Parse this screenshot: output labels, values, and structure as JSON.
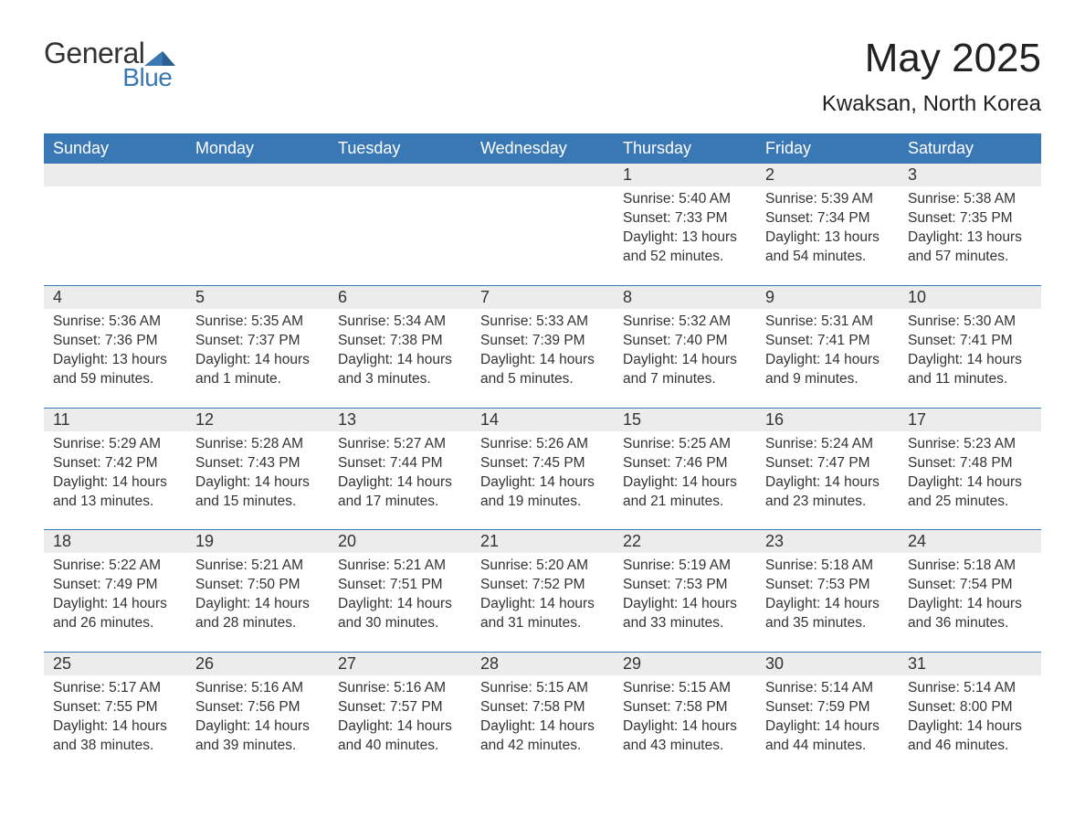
{
  "brand": {
    "name1": "General",
    "name2": "Blue",
    "accent": "#3a78b5"
  },
  "title": "May 2025",
  "location": "Kwaksan, North Korea",
  "colors": {
    "header_bg": "#3a78b5",
    "header_text": "#ffffff",
    "daynum_bg": "#ececec",
    "text": "#333333",
    "background": "#ffffff",
    "week_divider": "#3a78b5"
  },
  "weekdays": [
    "Sunday",
    "Monday",
    "Tuesday",
    "Wednesday",
    "Thursday",
    "Friday",
    "Saturday"
  ],
  "weeks": [
    [
      null,
      null,
      null,
      null,
      {
        "n": "1",
        "sunrise": "Sunrise: 5:40 AM",
        "sunset": "Sunset: 7:33 PM",
        "daylight": "Daylight: 13 hours and 52 minutes."
      },
      {
        "n": "2",
        "sunrise": "Sunrise: 5:39 AM",
        "sunset": "Sunset: 7:34 PM",
        "daylight": "Daylight: 13 hours and 54 minutes."
      },
      {
        "n": "3",
        "sunrise": "Sunrise: 5:38 AM",
        "sunset": "Sunset: 7:35 PM",
        "daylight": "Daylight: 13 hours and 57 minutes."
      }
    ],
    [
      {
        "n": "4",
        "sunrise": "Sunrise: 5:36 AM",
        "sunset": "Sunset: 7:36 PM",
        "daylight": "Daylight: 13 hours and 59 minutes."
      },
      {
        "n": "5",
        "sunrise": "Sunrise: 5:35 AM",
        "sunset": "Sunset: 7:37 PM",
        "daylight": "Daylight: 14 hours and 1 minute."
      },
      {
        "n": "6",
        "sunrise": "Sunrise: 5:34 AM",
        "sunset": "Sunset: 7:38 PM",
        "daylight": "Daylight: 14 hours and 3 minutes."
      },
      {
        "n": "7",
        "sunrise": "Sunrise: 5:33 AM",
        "sunset": "Sunset: 7:39 PM",
        "daylight": "Daylight: 14 hours and 5 minutes."
      },
      {
        "n": "8",
        "sunrise": "Sunrise: 5:32 AM",
        "sunset": "Sunset: 7:40 PM",
        "daylight": "Daylight: 14 hours and 7 minutes."
      },
      {
        "n": "9",
        "sunrise": "Sunrise: 5:31 AM",
        "sunset": "Sunset: 7:41 PM",
        "daylight": "Daylight: 14 hours and 9 minutes."
      },
      {
        "n": "10",
        "sunrise": "Sunrise: 5:30 AM",
        "sunset": "Sunset: 7:41 PM",
        "daylight": "Daylight: 14 hours and 11 minutes."
      }
    ],
    [
      {
        "n": "11",
        "sunrise": "Sunrise: 5:29 AM",
        "sunset": "Sunset: 7:42 PM",
        "daylight": "Daylight: 14 hours and 13 minutes."
      },
      {
        "n": "12",
        "sunrise": "Sunrise: 5:28 AM",
        "sunset": "Sunset: 7:43 PM",
        "daylight": "Daylight: 14 hours and 15 minutes."
      },
      {
        "n": "13",
        "sunrise": "Sunrise: 5:27 AM",
        "sunset": "Sunset: 7:44 PM",
        "daylight": "Daylight: 14 hours and 17 minutes."
      },
      {
        "n": "14",
        "sunrise": "Sunrise: 5:26 AM",
        "sunset": "Sunset: 7:45 PM",
        "daylight": "Daylight: 14 hours and 19 minutes."
      },
      {
        "n": "15",
        "sunrise": "Sunrise: 5:25 AM",
        "sunset": "Sunset: 7:46 PM",
        "daylight": "Daylight: 14 hours and 21 minutes."
      },
      {
        "n": "16",
        "sunrise": "Sunrise: 5:24 AM",
        "sunset": "Sunset: 7:47 PM",
        "daylight": "Daylight: 14 hours and 23 minutes."
      },
      {
        "n": "17",
        "sunrise": "Sunrise: 5:23 AM",
        "sunset": "Sunset: 7:48 PM",
        "daylight": "Daylight: 14 hours and 25 minutes."
      }
    ],
    [
      {
        "n": "18",
        "sunrise": "Sunrise: 5:22 AM",
        "sunset": "Sunset: 7:49 PM",
        "daylight": "Daylight: 14 hours and 26 minutes."
      },
      {
        "n": "19",
        "sunrise": "Sunrise: 5:21 AM",
        "sunset": "Sunset: 7:50 PM",
        "daylight": "Daylight: 14 hours and 28 minutes."
      },
      {
        "n": "20",
        "sunrise": "Sunrise: 5:21 AM",
        "sunset": "Sunset: 7:51 PM",
        "daylight": "Daylight: 14 hours and 30 minutes."
      },
      {
        "n": "21",
        "sunrise": "Sunrise: 5:20 AM",
        "sunset": "Sunset: 7:52 PM",
        "daylight": "Daylight: 14 hours and 31 minutes."
      },
      {
        "n": "22",
        "sunrise": "Sunrise: 5:19 AM",
        "sunset": "Sunset: 7:53 PM",
        "daylight": "Daylight: 14 hours and 33 minutes."
      },
      {
        "n": "23",
        "sunrise": "Sunrise: 5:18 AM",
        "sunset": "Sunset: 7:53 PM",
        "daylight": "Daylight: 14 hours and 35 minutes."
      },
      {
        "n": "24",
        "sunrise": "Sunrise: 5:18 AM",
        "sunset": "Sunset: 7:54 PM",
        "daylight": "Daylight: 14 hours and 36 minutes."
      }
    ],
    [
      {
        "n": "25",
        "sunrise": "Sunrise: 5:17 AM",
        "sunset": "Sunset: 7:55 PM",
        "daylight": "Daylight: 14 hours and 38 minutes."
      },
      {
        "n": "26",
        "sunrise": "Sunrise: 5:16 AM",
        "sunset": "Sunset: 7:56 PM",
        "daylight": "Daylight: 14 hours and 39 minutes."
      },
      {
        "n": "27",
        "sunrise": "Sunrise: 5:16 AM",
        "sunset": "Sunset: 7:57 PM",
        "daylight": "Daylight: 14 hours and 40 minutes."
      },
      {
        "n": "28",
        "sunrise": "Sunrise: 5:15 AM",
        "sunset": "Sunset: 7:58 PM",
        "daylight": "Daylight: 14 hours and 42 minutes."
      },
      {
        "n": "29",
        "sunrise": "Sunrise: 5:15 AM",
        "sunset": "Sunset: 7:58 PM",
        "daylight": "Daylight: 14 hours and 43 minutes."
      },
      {
        "n": "30",
        "sunrise": "Sunrise: 5:14 AM",
        "sunset": "Sunset: 7:59 PM",
        "daylight": "Daylight: 14 hours and 44 minutes."
      },
      {
        "n": "31",
        "sunrise": "Sunrise: 5:14 AM",
        "sunset": "Sunset: 8:00 PM",
        "daylight": "Daylight: 14 hours and 46 minutes."
      }
    ]
  ]
}
